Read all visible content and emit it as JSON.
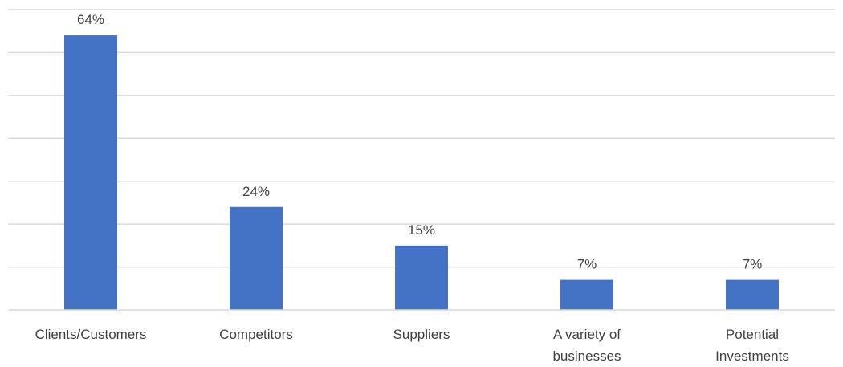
{
  "chart_data": {
    "type": "bar",
    "title": "",
    "xlabel": "",
    "ylabel": "",
    "categories": [
      "Clients/Customers",
      "Competitors",
      "Suppliers",
      "A variety of businesses",
      "Potential Investments"
    ],
    "category_lines": [
      [
        "Clients/Customers"
      ],
      [
        "Competitors"
      ],
      [
        "Suppliers"
      ],
      [
        "A variety of",
        "businesses"
      ],
      [
        "Potential",
        "Investments"
      ]
    ],
    "values": [
      64,
      24,
      15,
      7,
      7
    ],
    "data_labels": [
      "64%",
      "24%",
      "15%",
      "7%",
      "7%"
    ],
    "ylim": [
      0,
      70
    ],
    "grid": true,
    "legend": "none",
    "colors": {
      "bar": "#4472c4",
      "grid": "#d9d9d9",
      "text": "#404040"
    }
  }
}
